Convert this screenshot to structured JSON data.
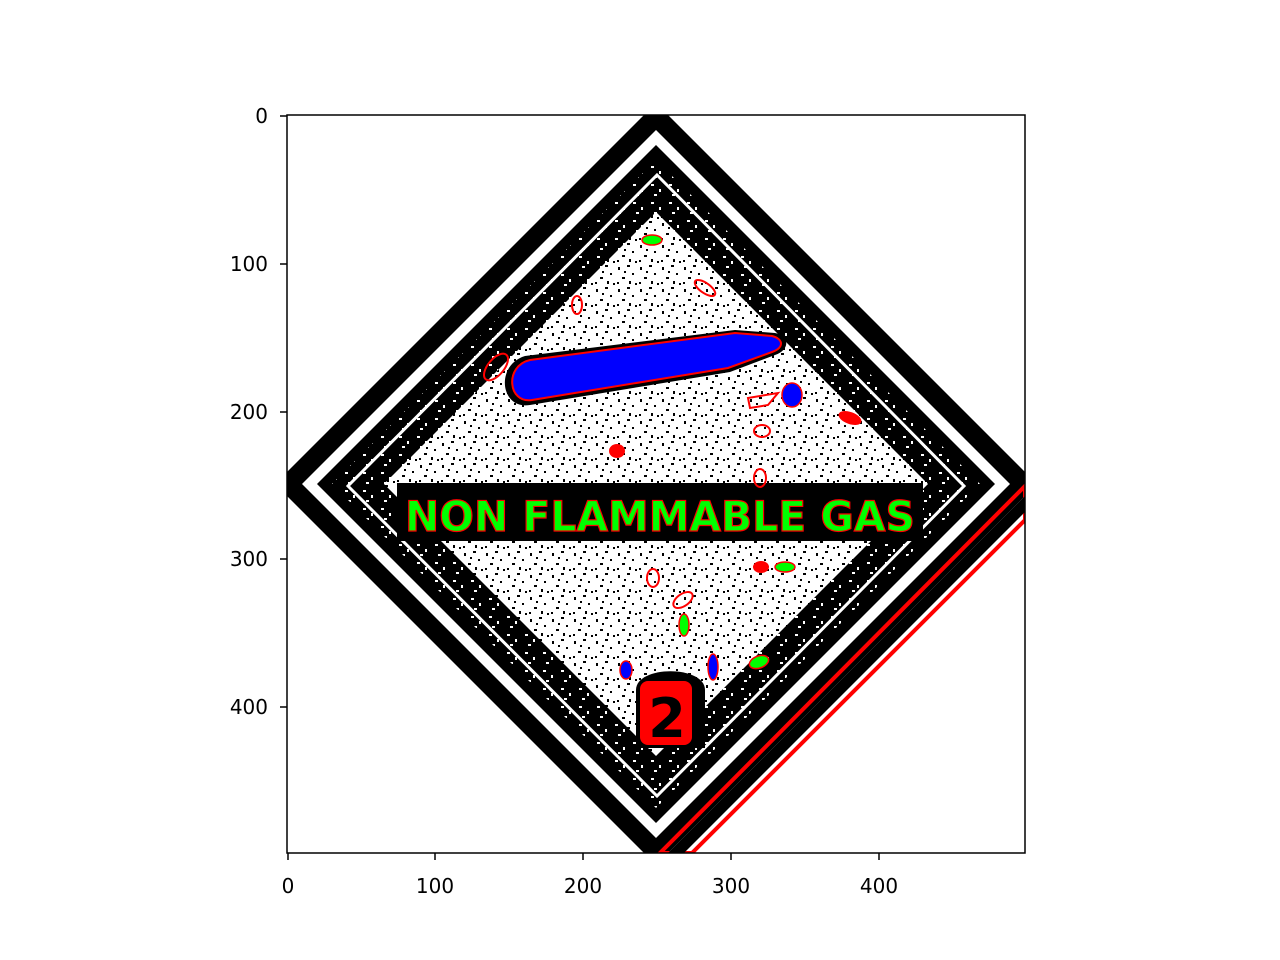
{
  "image": {
    "sign_text": "NON FLAMMABLE GAS",
    "class_number": "2",
    "contour_colors": {
      "outline": "#ff0000",
      "region_a": "#00ff00",
      "region_b": "#0000ff",
      "region_c": "#ff0000"
    }
  },
  "axes": {
    "x_ticks": [
      "0",
      "100",
      "200",
      "300",
      "400"
    ],
    "y_ticks": [
      "0",
      "100",
      "200",
      "300",
      "400"
    ],
    "x_range": [
      0,
      499
    ],
    "y_range": [
      0,
      499
    ]
  }
}
